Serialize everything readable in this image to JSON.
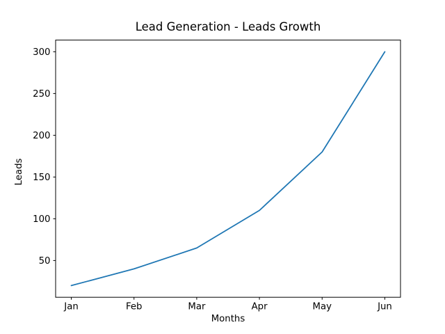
{
  "chart_data": {
    "type": "line",
    "title": "Lead Generation - Leads Growth",
    "xlabel": "Months",
    "ylabel": "Leads",
    "categories": [
      "Jan",
      "Feb",
      "Mar",
      "Apr",
      "May",
      "Jun"
    ],
    "series": [
      {
        "name": "Leads",
        "color": "#1f77b4",
        "values": [
          20,
          40,
          65,
          110,
          180,
          300
        ]
      }
    ],
    "yticks": [
      50,
      100,
      150,
      200,
      250,
      300
    ],
    "xlim": [
      -0.25,
      5.25
    ],
    "ylim": [
      6,
      314
    ],
    "grid": false,
    "legend_position": "none",
    "background": "#ffffff",
    "text_color": "#000000"
  }
}
